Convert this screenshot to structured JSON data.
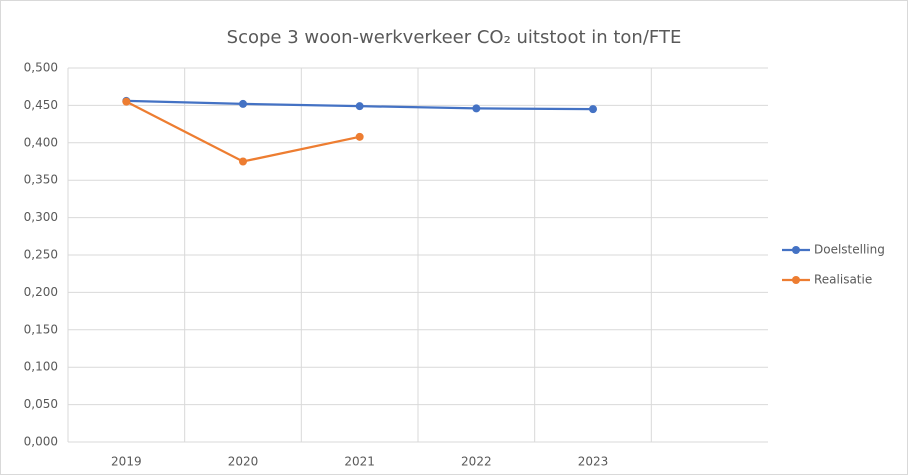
{
  "chart_data": {
    "type": "line",
    "title": "Scope 3 woon-werkverkeer CO₂ uitstoot in ton/FTE",
    "categories": [
      "2019",
      "2020",
      "2021",
      "2022",
      "2023",
      null
    ],
    "series": [
      {
        "name": "Doelstelling",
        "color": "#4472c4",
        "values": [
          0.456,
          0.452,
          0.449,
          0.446,
          0.445,
          null
        ]
      },
      {
        "name": "Realisatie",
        "color": "#ed7d31",
        "values": [
          0.455,
          0.375,
          0.408,
          null,
          null,
          null
        ]
      }
    ],
    "ylim": [
      0,
      0.5
    ],
    "yticks": [
      {
        "value": 0,
        "label": "0,000"
      },
      {
        "value": 0.05,
        "label": "0,050"
      },
      {
        "value": 0.1,
        "label": "0,100"
      },
      {
        "value": 0.15,
        "label": "0,150"
      },
      {
        "value": 0.2,
        "label": "0,200"
      },
      {
        "value": 0.25,
        "label": "0,250"
      },
      {
        "value": 0.3,
        "label": "0,300"
      },
      {
        "value": 0.35,
        "label": "0,350"
      },
      {
        "value": 0.4,
        "label": "0,400"
      },
      {
        "value": 0.45,
        "label": "0,450"
      },
      {
        "value": 0.5,
        "label": "0,500"
      }
    ],
    "grid": true,
    "legend": "right"
  }
}
